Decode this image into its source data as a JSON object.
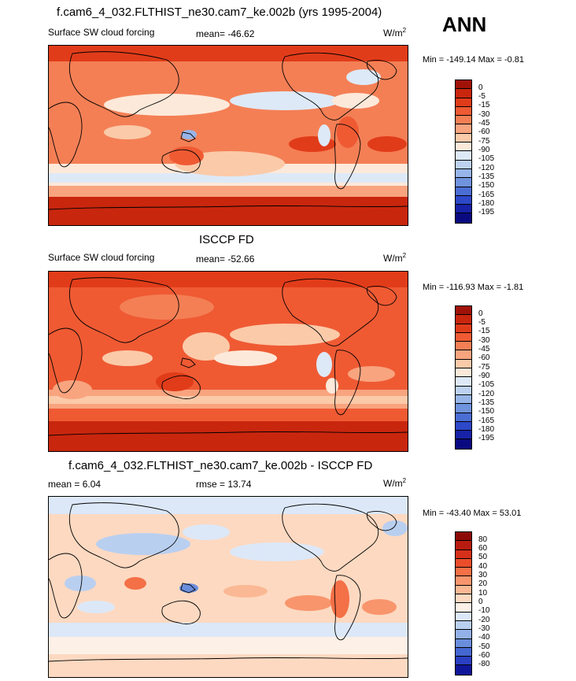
{
  "season": "ANN",
  "panels": [
    {
      "title": "f.cam6_4_032.FLTHIST_ne30.cam7_ke.002b (yrs 1995-2004)",
      "left_label": "Surface SW cloud forcing",
      "center_label": "mean= -46.62",
      "right_label": "W/m",
      "right_sup": "2",
      "minmax": "Min = -149.14 Max =  -0.81",
      "colorbar": {
        "labels": [
          "0",
          "-5",
          "-15",
          "-30",
          "-45",
          "-60",
          "-75",
          "-90",
          "-105",
          "-120",
          "-135",
          "-150",
          "-165",
          "-180",
          "-195"
        ],
        "colors": [
          "#a01208",
          "#c9260e",
          "#e13c1a",
          "#ef5a33",
          "#f47f55",
          "#f8a47f",
          "#fbcaa9",
          "#fde9da",
          "#dde9f7",
          "#bcd2f0",
          "#97b5e8",
          "#6f93dc",
          "#4b6ed5",
          "#2d48c8",
          "#1722a8",
          "#0a0a80"
        ]
      }
    },
    {
      "title": "ISCCP FD",
      "left_label": "Surface SW cloud forcing",
      "center_label": "mean= -52.66",
      "right_label": "W/m",
      "right_sup": "2",
      "minmax": "Min = -116.93 Max =  -1.81",
      "colorbar": {
        "labels": [
          "0",
          "-5",
          "-15",
          "-30",
          "-45",
          "-60",
          "-75",
          "-90",
          "-105",
          "-120",
          "-135",
          "-150",
          "-165",
          "-180",
          "-195"
        ],
        "colors": [
          "#a01208",
          "#c9260e",
          "#e13c1a",
          "#ef5a33",
          "#f47f55",
          "#f8a47f",
          "#fbcaa9",
          "#fde9da",
          "#dde9f7",
          "#bcd2f0",
          "#97b5e8",
          "#6f93dc",
          "#4b6ed5",
          "#2d48c8",
          "#1722a8",
          "#0a0a80"
        ]
      }
    },
    {
      "title": "f.cam6_4_032.FLTHIST_ne30.cam7_ke.002b - ISCCP FD",
      "left_label": "mean =   6.04",
      "center_label": "rmse =  13.74",
      "right_label": "W/m",
      "right_sup": "2",
      "minmax": "Min = -43.40 Max =  53.01",
      "colorbar": {
        "labels": [
          "80",
          "60",
          "50",
          "40",
          "30",
          "20",
          "10",
          "0",
          "-10",
          "-20",
          "-30",
          "-40",
          "-50",
          "-60",
          "-80"
        ],
        "colors": [
          "#8c0a06",
          "#b81c10",
          "#d6301b",
          "#eb4d2b",
          "#f47047",
          "#f8956c",
          "#fbb894",
          "#fdd9c1",
          "#fdf0e6",
          "#dce8f8",
          "#b9cff0",
          "#93b1e8",
          "#6a8edc",
          "#4567d1",
          "#2a3fc2",
          "#10169a"
        ]
      }
    }
  ]
}
